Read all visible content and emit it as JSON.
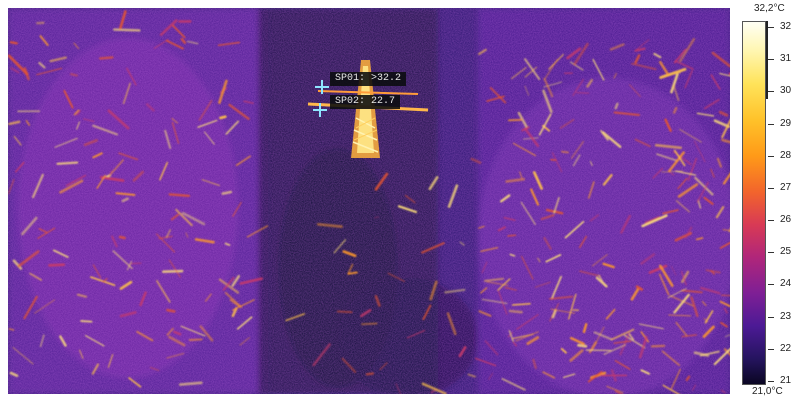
{
  "spots": [
    {
      "id": "SP01",
      "label": "SP01: >32.2"
    },
    {
      "id": "SP02",
      "label": "SP02: 22.7"
    }
  ],
  "scale": {
    "max_label": "32,2°C",
    "min_label": "21,0°C",
    "ticks": [
      "32",
      "31",
      "30",
      "29",
      "28",
      "27",
      "26",
      "25",
      "24",
      "23",
      "22",
      "21"
    ],
    "palette": [
      "#fffff4",
      "#ffe35a",
      "#ff9a18",
      "#d83a55",
      "#7e1f95",
      "#25145f",
      "#0a0622"
    ]
  },
  "icons": {
    "spot_marker": "crosshair-icon"
  }
}
